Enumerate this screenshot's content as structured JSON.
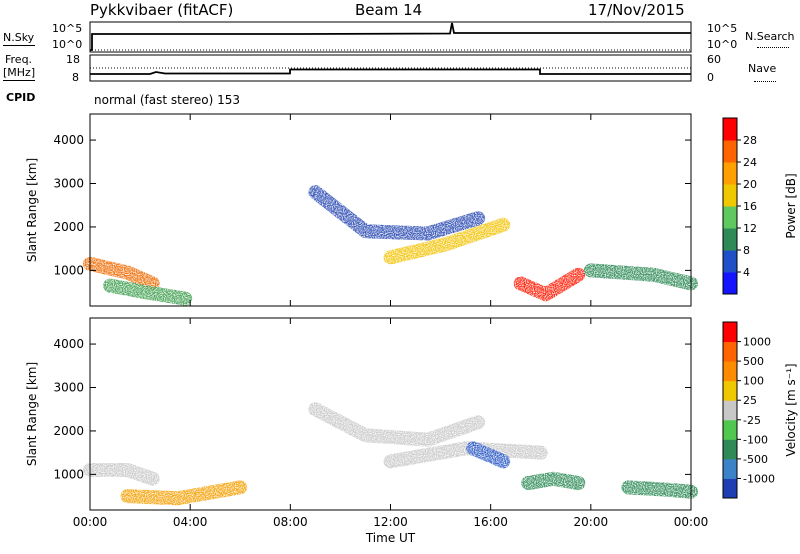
{
  "header": {
    "station": "Pykkvibaer (fitACF)",
    "beam": "Beam 14",
    "date": "17/Nov/2015"
  },
  "top_panels": {
    "nsky_label": "N.Sky",
    "nsearch_label": "N.Search",
    "ticks_left": [
      "10^5",
      "10^0"
    ],
    "ticks_right": [
      "10^5",
      "10^0"
    ],
    "freq_label_1": "Freq.",
    "freq_label_2": "[MHz]",
    "freq_ticks": [
      "18",
      "8"
    ],
    "nave_label": "Nave",
    "nave_ticks": [
      "60",
      "0"
    ],
    "cpid_label": "CPID",
    "cpid_text": "normal (fast stereo) 153"
  },
  "chart_data": [
    {
      "type": "heatmap",
      "name": "power",
      "ylabel": "Slant Range [km]",
      "xlabel": "Time UT",
      "xlim": [
        "00:00",
        "24:00"
      ],
      "ylim": [
        180,
        4600
      ],
      "ytick_labels": [
        "1000",
        "2000",
        "3000",
        "4000"
      ],
      "colorbar_label": "Power [dB]",
      "colorbar_ticks": [
        "4",
        "8",
        "12",
        "16",
        "20",
        "24",
        "28"
      ],
      "colorbar_colors": [
        "#1414ff",
        "#2050c8",
        "#2e8b57",
        "#5fc85f",
        "#f0c800",
        "#ffa000",
        "#ff6400",
        "#ff0000"
      ],
      "echo_bands": [
        {
          "x": [
            0,
            1.5,
            2.5
          ],
          "y": [
            1150,
            950,
            700
          ],
          "color": "#f06a00"
        },
        {
          "x": [
            0.8,
            2.2,
            3.8
          ],
          "y": [
            650,
            500,
            350
          ],
          "color": "#3f9f4f"
        },
        {
          "x": [
            9,
            11,
            13.5,
            15.5
          ],
          "y": [
            2800,
            1900,
            1850,
            2200
          ],
          "color": "#2a4ab2"
        },
        {
          "x": [
            12,
            14.2,
            16.5
          ],
          "y": [
            1300,
            1600,
            2050
          ],
          "color": "#f2c200"
        },
        {
          "x": [
            17.2,
            18.2,
            19.5
          ],
          "y": [
            700,
            450,
            900
          ],
          "color": "#ff1a00"
        },
        {
          "x": [
            20,
            22.5,
            24
          ],
          "y": [
            1000,
            900,
            700
          ],
          "color": "#2e8b57"
        }
      ]
    },
    {
      "type": "heatmap",
      "name": "velocity",
      "ylabel": "Slant Range [km]",
      "xlabel": "Time UT",
      "xlim": [
        "00:00",
        "24:00"
      ],
      "ylim": [
        180,
        4600
      ],
      "ytick_labels": [
        "1000",
        "2000",
        "3000",
        "4000"
      ],
      "xtick_labels": [
        "00:00",
        "04:00",
        "08:00",
        "12:00",
        "16:00",
        "20:00",
        "00:00"
      ],
      "colorbar_label": "Velocity [m s⁻¹]",
      "colorbar_ticks": [
        "1000",
        "500",
        "100",
        "25",
        "-25",
        "-100",
        "-500",
        "-1000"
      ],
      "colorbar_colors": [
        "#1e3fb4",
        "#3c82c8",
        "#2e8b57",
        "#50c850",
        "#c8c8c8",
        "#f0c800",
        "#ff8c00",
        "#ff6400",
        "#ff0000"
      ],
      "echo_bands": [
        {
          "x": [
            0,
            1.5,
            2.5
          ],
          "y": [
            1100,
            1100,
            900
          ],
          "color": "#c8c8c8"
        },
        {
          "x": [
            1.5,
            3.5,
            6
          ],
          "y": [
            500,
            450,
            700
          ],
          "color": "#f5a000"
        },
        {
          "x": [
            9,
            11,
            13.5,
            15.5
          ],
          "y": [
            2500,
            1900,
            1800,
            2200
          ],
          "color": "#c8c8c8"
        },
        {
          "x": [
            12,
            15,
            18
          ],
          "y": [
            1300,
            1600,
            1500
          ],
          "color": "#c8c8c8"
        },
        {
          "x": [
            15.3,
            16.5
          ],
          "y": [
            1600,
            1300
          ],
          "color": "#2a5ac8"
        },
        {
          "x": [
            17.5,
            18.5,
            19.5
          ],
          "y": [
            800,
            900,
            800
          ],
          "color": "#2e8b57"
        },
        {
          "x": [
            21.5,
            23,
            24
          ],
          "y": [
            700,
            650,
            600
          ],
          "color": "#2e8b57"
        }
      ]
    }
  ]
}
